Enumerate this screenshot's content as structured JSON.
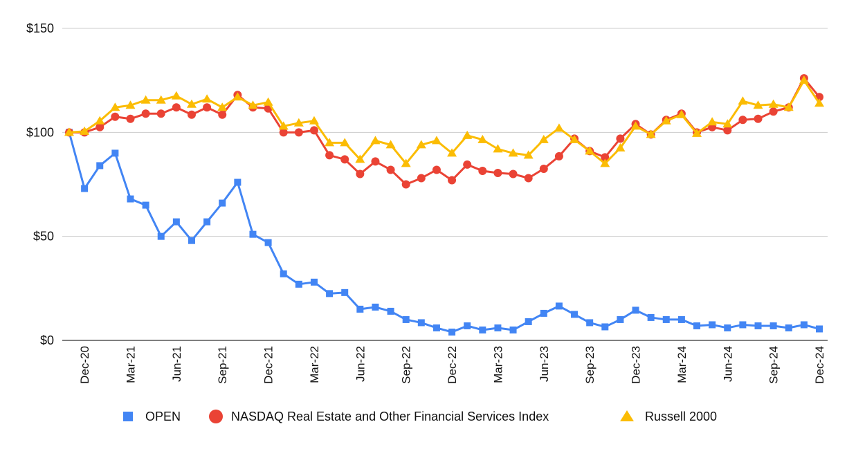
{
  "chart_data": {
    "type": "line",
    "title": "",
    "xlabel": "",
    "ylabel": "",
    "ylim": [
      0,
      150
    ],
    "grid": true,
    "legend_position": "bottom",
    "y_ticks": [
      {
        "value": 0,
        "label": "$0"
      },
      {
        "value": 50,
        "label": "$50"
      },
      {
        "value": 100,
        "label": "$100"
      },
      {
        "value": 150,
        "label": "$150"
      }
    ],
    "x_tick_labels": [
      {
        "index": 1,
        "label": "Dec-20"
      },
      {
        "index": 4,
        "label": "Mar-21"
      },
      {
        "index": 7,
        "label": "Jun-21"
      },
      {
        "index": 10,
        "label": "Sep-21"
      },
      {
        "index": 13,
        "label": "Dec-21"
      },
      {
        "index": 16,
        "label": "Mar-22"
      },
      {
        "index": 19,
        "label": "Jun-22"
      },
      {
        "index": 22,
        "label": "Sep-22"
      },
      {
        "index": 25,
        "label": "Dec-22"
      },
      {
        "index": 28,
        "label": "Mar-23"
      },
      {
        "index": 31,
        "label": "Jun-23"
      },
      {
        "index": 34,
        "label": "Sep-23"
      },
      {
        "index": 37,
        "label": "Dec-23"
      },
      {
        "index": 40,
        "label": "Mar-24"
      },
      {
        "index": 43,
        "label": "Jun-24"
      },
      {
        "index": 46,
        "label": "Sep-24"
      },
      {
        "index": 49,
        "label": "Dec-24"
      }
    ],
    "num_points": 50,
    "series": [
      {
        "name": "OPEN",
        "color": "#4285F4",
        "marker": "square",
        "values": [
          100,
          73,
          84,
          90,
          68,
          65,
          50,
          57,
          48,
          57,
          66,
          76,
          51,
          47,
          32,
          27,
          28,
          22.5,
          23,
          15,
          16,
          14,
          10,
          8.5,
          6,
          4,
          7,
          5,
          6,
          5,
          9,
          13,
          16.5,
          12.5,
          8.5,
          6.5,
          10,
          14.5,
          11,
          10,
          10,
          7,
          7.5,
          6,
          7.5,
          7,
          7,
          6,
          7.5,
          5.5
        ]
      },
      {
        "name": "NASDAQ Real Estate and Other Financial Services Index",
        "color": "#EA4335",
        "marker": "circle",
        "values": [
          100,
          100,
          102.5,
          107.5,
          106.5,
          109,
          109,
          112,
          108.5,
          112,
          108.5,
          118,
          112,
          111.5,
          100,
          100,
          101,
          89,
          87,
          80,
          86,
          82,
          75,
          78,
          82,
          77,
          84.5,
          81.5,
          80.5,
          80,
          78,
          82.5,
          88.5,
          97,
          91,
          88,
          97,
          104,
          99,
          106,
          109,
          100,
          102.5,
          101,
          106,
          106.5,
          110,
          112,
          126,
          117
        ]
      },
      {
        "name": "Russell 2000",
        "color": "#FBBC04",
        "marker": "triangle",
        "values": [
          100,
          100.5,
          105.5,
          112,
          113,
          115.5,
          115.5,
          117.5,
          113.5,
          116,
          112,
          117,
          113,
          114.5,
          103,
          104.5,
          105.5,
          95,
          95,
          87,
          96,
          94,
          85,
          94,
          96,
          90,
          98.5,
          96.5,
          92,
          90,
          89,
          96.5,
          102,
          96.5,
          91,
          85,
          92.5,
          103,
          99,
          105.5,
          108.5,
          99.5,
          105,
          104,
          115,
          113,
          113.5,
          112,
          125,
          114
        ]
      }
    ]
  }
}
